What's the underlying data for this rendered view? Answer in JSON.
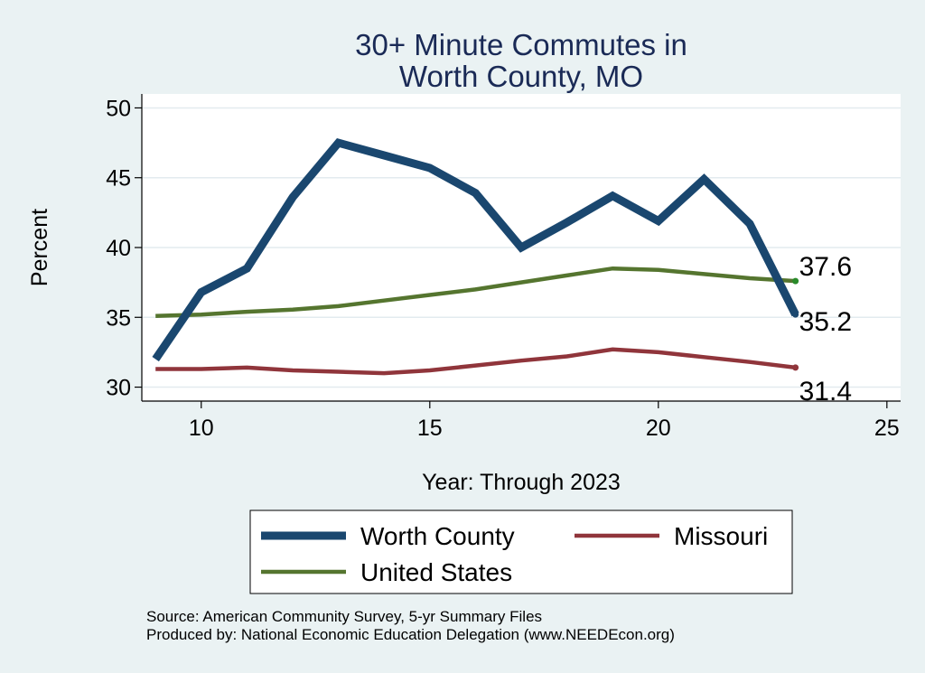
{
  "chart_data": {
    "type": "line",
    "title": [
      "30+ Minute Commutes in",
      "Worth County, MO"
    ],
    "xlabel": "Year: Through 2023",
    "ylabel": "Percent",
    "xlim": [
      8.7,
      25.3
    ],
    "ylim": [
      29.0,
      51.0
    ],
    "xticks": [
      10,
      15,
      20,
      25
    ],
    "yticks": [
      30,
      35,
      40,
      45,
      50
    ],
    "grid": true,
    "x": [
      9,
      10,
      11,
      12,
      13,
      14,
      15,
      16,
      17,
      18,
      19,
      20,
      21,
      22,
      23
    ],
    "series": [
      {
        "name": "Worth County",
        "color": "#1a476f",
        "values": [
          32.0,
          36.8,
          38.5,
          43.6,
          47.5,
          46.6,
          45.7,
          43.9,
          40.0,
          41.8,
          43.7,
          41.9,
          44.9,
          41.7,
          35.2
        ],
        "end_label": "35.2"
      },
      {
        "name": "Missouri",
        "color": "#90353b",
        "values": [
          31.3,
          31.3,
          31.4,
          31.2,
          31.1,
          31.0,
          31.2,
          31.55,
          31.9,
          32.2,
          32.7,
          32.5,
          32.15,
          31.8,
          31.4
        ],
        "end_label": "31.4"
      },
      {
        "name": "United States",
        "color": "#55752f",
        "values": [
          35.1,
          35.2,
          35.4,
          35.55,
          35.8,
          36.2,
          36.6,
          37.0,
          37.5,
          38.0,
          38.5,
          38.4,
          38.1,
          37.8,
          37.6
        ],
        "end_label": "37.6"
      }
    ],
    "legend": {
      "placement": "bottom",
      "items": [
        "Worth County",
        "Missouri",
        "United States"
      ]
    },
    "notes": [
      "Source: American Community Survey, 5-yr Summary Files",
      "Produced by: National Economic Education Delegation (www.NEEDEcon.org)"
    ]
  }
}
